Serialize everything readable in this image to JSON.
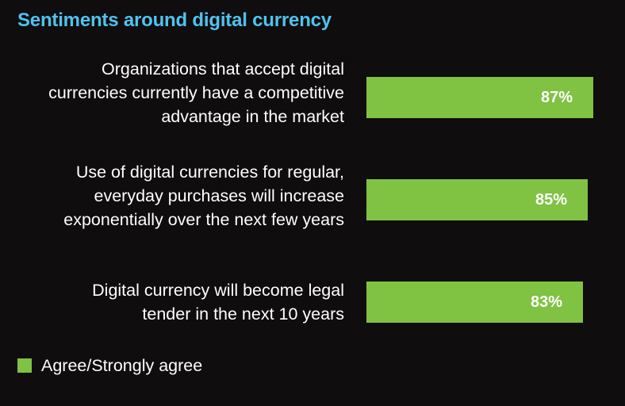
{
  "title": "Sentiments around digital currency",
  "chart_data": {
    "type": "bar",
    "orientation": "horizontal",
    "title": "Sentiments around digital currency",
    "categories": [
      "Organizations that accept digital currencies currently have a competitive advantage in the market",
      "Use of digital currencies for regular, everyday purchases will increase exponentially over the next few years",
      "Digital currency will become legal tender in the next 10 years"
    ],
    "category_lines": [
      [
        "Organizations that accept digital",
        "currencies currently have a competitive",
        "advantage in the market"
      ],
      [
        "Use of digital currencies for regular,",
        "everyday purchases will increase",
        "exponentially over the next few years"
      ],
      [
        "Digital currency will become legal",
        "tender in the next 10 years"
      ]
    ],
    "series": [
      {
        "name": "Agree/Strongly agree",
        "values": [
          87,
          85,
          83
        ],
        "labels": [
          "87%",
          "85%",
          "83%"
        ],
        "color": "#80c242"
      }
    ],
    "legend_position": "bottom-left",
    "grid": false
  },
  "colors": {
    "background": "#0f0d0e",
    "title": "#4fc3f0",
    "bar": "#80c242",
    "text": "#ffffff"
  }
}
